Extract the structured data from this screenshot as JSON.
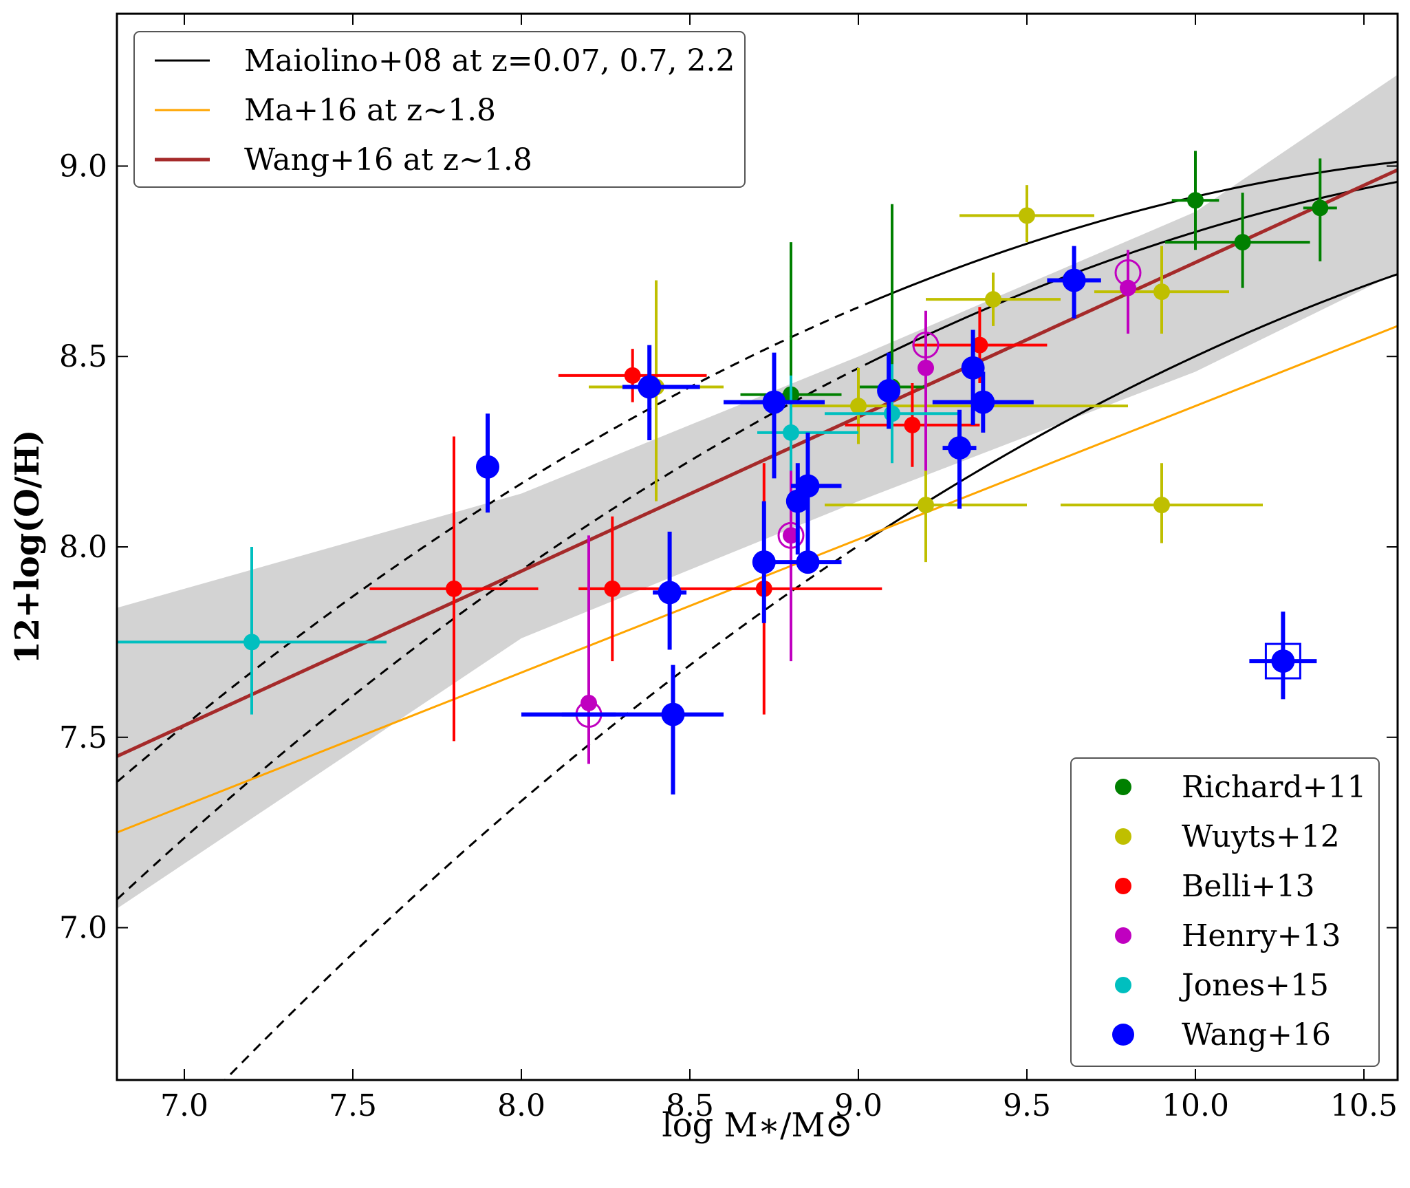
{
  "chart_data": {
    "type": "scatter",
    "xlabel": "log M∗/M⊙",
    "ylabel": "12+log(O/H)",
    "xlim": [
      6.8,
      10.6
    ],
    "ylim": [
      6.6,
      9.4
    ],
    "xticks": [
      "7.0",
      "7.5",
      "8.0",
      "8.5",
      "9.0",
      "9.5",
      "10.0",
      "10.5"
    ],
    "yticks": [
      "7.0",
      "7.5",
      "8.0",
      "8.5",
      "9.0"
    ],
    "grid": false,
    "line_legend": {
      "placement": "top-left",
      "entries": [
        {
          "label": "Maiolino+08 at z=0.07, 0.7, 2.2",
          "color": "#000000"
        },
        {
          "label": "Ma+16 at z∼1.8",
          "color": "#ffa500"
        },
        {
          "label": "Wang+16 at z∼1.8",
          "color": "#a52a2a"
        }
      ]
    },
    "lines": {
      "maiolino08": {
        "color": "#000000",
        "params": [
          {
            "z": 0.07,
            "log_M0": 11.18,
            "K0": 9.04
          },
          {
            "z": 0.7,
            "log_M0": 11.57,
            "K0": 9.04
          },
          {
            "z": 2.2,
            "log_M0": 12.38,
            "K0": 8.99
          }
        ]
      },
      "ma16": {
        "color": "#ffa500",
        "x": [
          6.8,
          10.6
        ],
        "y": [
          7.25,
          8.58
        ]
      },
      "wang16": {
        "color": "#a52a2a",
        "x": [
          6.8,
          10.6
        ],
        "y": [
          7.45,
          8.99
        ]
      },
      "wang16_band": {
        "color": "#d3d3d3",
        "x": [
          6.8,
          8.0,
          9.0,
          10.0,
          10.6
        ],
        "upper": [
          7.84,
          8.14,
          8.5,
          8.88,
          9.24
        ],
        "lower": [
          7.05,
          7.76,
          8.12,
          8.46,
          8.72
        ]
      }
    },
    "series": [
      {
        "name": "Richard+11",
        "color": "#008000",
        "points": [
          {
            "x": 8.8,
            "y": 8.4,
            "xerr": [
              0.15,
              0.15
            ],
            "yerr": [
              0.3,
              0.4
            ]
          },
          {
            "x": 9.1,
            "y": 8.42,
            "xerr": [
              0.1,
              0.1
            ],
            "yerr": [
              0.1,
              0.48
            ]
          },
          {
            "x": 10.0,
            "y": 8.91,
            "xerr": [
              0.07,
              0.07
            ],
            "yerr": [
              0.13,
              0.13
            ]
          },
          {
            "x": 10.14,
            "y": 8.8,
            "xerr": [
              0.23,
              0.2
            ],
            "yerr": [
              0.12,
              0.13
            ]
          },
          {
            "x": 10.37,
            "y": 8.89,
            "xerr": [
              0.05,
              0.05
            ],
            "yerr": [
              0.14,
              0.13
            ]
          }
        ]
      },
      {
        "name": "Wuyts+12",
        "color": "#bfbf00",
        "points": [
          {
            "x": 8.4,
            "y": 8.42,
            "xerr": [
              0.2,
              0.2
            ],
            "yerr": [
              0.3,
              0.28
            ]
          },
          {
            "x": 9.0,
            "y": 8.37,
            "xerr": [
              0.2,
              0.8
            ],
            "yerr": [
              0.1,
              0.1
            ]
          },
          {
            "x": 9.2,
            "y": 8.11,
            "xerr": [
              0.3,
              0.3
            ],
            "yerr": [
              0.15,
              0.15
            ]
          },
          {
            "x": 9.4,
            "y": 8.65,
            "xerr": [
              0.2,
              0.2
            ],
            "yerr": [
              0.07,
              0.07
            ]
          },
          {
            "x": 9.5,
            "y": 8.87,
            "xerr": [
              0.2,
              0.2
            ],
            "yerr": [
              0.07,
              0.08
            ]
          },
          {
            "x": 9.9,
            "y": 8.67,
            "xerr": [
              0.2,
              0.2
            ],
            "yerr": [
              0.11,
              0.12
            ]
          },
          {
            "x": 9.9,
            "y": 8.11,
            "xerr": [
              0.3,
              0.3
            ],
            "yerr": [
              0.1,
              0.11
            ]
          }
        ]
      },
      {
        "name": "Belli+13",
        "color": "#ff0000",
        "points": [
          {
            "x": 7.8,
            "y": 7.89,
            "xerr": [
              0.25,
              0.25
            ],
            "yerr": [
              0.4,
              0.4
            ]
          },
          {
            "x": 8.27,
            "y": 7.89,
            "xerr": [
              0.1,
              0.1
            ],
            "yerr": [
              0.19,
              0.19
            ]
          },
          {
            "x": 8.33,
            "y": 8.45,
            "xerr": [
              0.22,
              0.22
            ],
            "yerr": [
              0.07,
              0.07
            ]
          },
          {
            "x": 8.72,
            "y": 7.89,
            "xerr": [
              0.55,
              0.35
            ],
            "yerr": [
              0.33,
              0.33
            ]
          },
          {
            "x": 9.16,
            "y": 8.32,
            "xerr": [
              0.2,
              0.2
            ],
            "yerr": [
              0.11,
              0.11
            ]
          },
          {
            "x": 9.36,
            "y": 8.53,
            "xerr": [
              0.2,
              0.2
            ],
            "yerr": [
              0.1,
              0.1
            ]
          }
        ]
      },
      {
        "name": "Henry+13",
        "color": "#c000c0",
        "points": [
          {
            "x": 8.2,
            "y": 7.59,
            "yerr": [
              0.16,
              0.44
            ]
          },
          {
            "x": 8.8,
            "y": 8.03,
            "yerr": [
              0.33,
              0.2
            ]
          },
          {
            "x": 9.2,
            "y": 8.47,
            "yerr": [
              0.27,
              0.15
            ]
          },
          {
            "x": 9.8,
            "y": 8.68,
            "yerr": [
              0.12,
              0.1
            ]
          }
        ]
      },
      {
        "name": "Jones+15",
        "color": "#00bfbf",
        "points": [
          {
            "x": 7.2,
            "y": 7.75,
            "xerr": [
              0.4,
              0.4
            ],
            "yerr": [
              0.19,
              0.25
            ]
          },
          {
            "x": 8.8,
            "y": 8.3,
            "xerr": [
              0.1,
              0.2
            ],
            "yerr": [
              0.1,
              0.15
            ]
          },
          {
            "x": 9.1,
            "y": 8.35,
            "xerr": [
              0.2,
              0.2
            ],
            "yerr": [
              0.13,
              0.13
            ]
          }
        ]
      },
      {
        "name": "Wang+16",
        "color": "#0000ff",
        "points": [
          {
            "x": 7.9,
            "y": 8.21,
            "xerr": [
              0,
              0
            ],
            "yerr": [
              0.12,
              0.14
            ]
          },
          {
            "x": 8.2,
            "y": 7.56,
            "xerr": [
              0.08,
              0.08
            ],
            "yerr": [
              0,
              0
            ],
            "marker": "circle"
          },
          {
            "x": 8.38,
            "y": 8.42,
            "xerr": [
              0.08,
              0.15
            ],
            "yerr": [
              0.14,
              0.11
            ]
          },
          {
            "x": 8.44,
            "y": 7.88,
            "xerr": [
              0.05,
              0.05
            ],
            "yerr": [
              0.15,
              0.16
            ]
          },
          {
            "x": 8.45,
            "y": 7.56,
            "xerr": [
              0.45,
              0.15
            ],
            "yerr": [
              0.21,
              0.13
            ]
          },
          {
            "x": 8.72,
            "y": 7.96,
            "xerr": [
              0,
              0
            ],
            "yerr": [
              0.16,
              0.16
            ]
          },
          {
            "x": 8.75,
            "y": 8.38,
            "xerr": [
              0.15,
              0.15
            ],
            "yerr": [
              0.2,
              0.13
            ]
          },
          {
            "x": 8.8,
            "y": 8.03,
            "marker": "circle"
          },
          {
            "x": 8.82,
            "y": 8.12,
            "xerr": [
              0,
              0
            ],
            "yerr": [
              0.14,
              0.1
            ]
          },
          {
            "x": 8.85,
            "y": 8.16,
            "xerr": [
              0.05,
              0.1
            ],
            "yerr": [
              0.2,
              0.14
            ]
          },
          {
            "x": 8.85,
            "y": 7.96,
            "xerr": [
              0.12,
              0.1
            ],
            "yerr": [
              0,
              0
            ]
          },
          {
            "x": 9.09,
            "y": 8.41,
            "xerr": [
              0,
              0
            ],
            "yerr": [
              0.1,
              0.1
            ]
          },
          {
            "x": 9.2,
            "y": 8.53,
            "marker": "circle"
          },
          {
            "x": 9.3,
            "y": 8.26,
            "xerr": [
              0.05,
              0.05
            ],
            "yerr": [
              0.16,
              0.1
            ]
          },
          {
            "x": 9.34,
            "y": 8.47,
            "xerr": [
              0,
              0
            ],
            "yerr": [
              0.15,
              0.1
            ]
          },
          {
            "x": 9.37,
            "y": 8.38,
            "xerr": [
              0.15,
              0.15
            ],
            "yerr": [
              0.08,
              0.08
            ]
          },
          {
            "x": 9.64,
            "y": 8.7,
            "xerr": [
              0.08,
              0.08
            ],
            "yerr": [
              0.1,
              0.09
            ]
          },
          {
            "x": 9.8,
            "y": 8.72,
            "marker": "circle"
          },
          {
            "x": 10.26,
            "y": 7.7,
            "xerr": [
              0.1,
              0.1
            ],
            "yerr": [
              0.1,
              0.13
            ],
            "marker": "square"
          }
        ]
      }
    ],
    "point_legend": {
      "placement": "bottom-right"
    }
  }
}
